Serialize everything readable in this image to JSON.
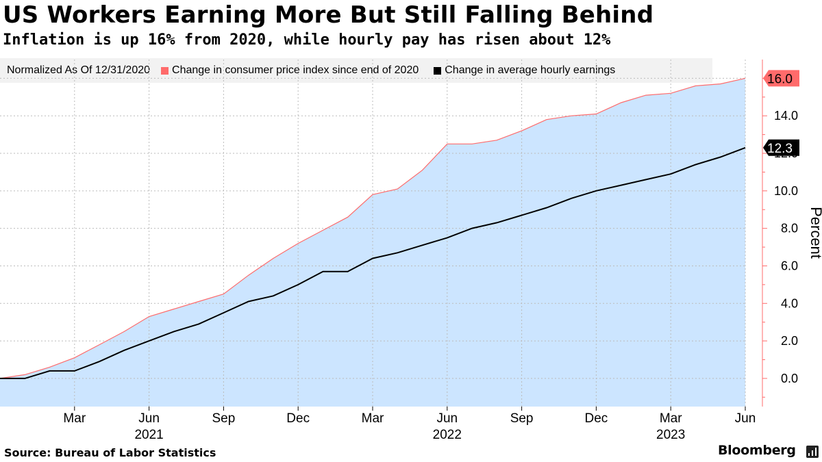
{
  "header": {
    "title": "US Workers Earning More But Still Falling Behind",
    "subtitle": "Inflation is up 16% from 2020, while hourly pay has risen about 12%"
  },
  "legend": {
    "note": "Normalized As Of 12/31/2020",
    "items": [
      {
        "label": "Change in consumer price index since end of 2020",
        "color": "#ff6b6b"
      },
      {
        "label": "Change in average hourly earnings",
        "color": "#000000"
      }
    ]
  },
  "footer": {
    "source": "Source: Bureau of Labor Statistics",
    "brand": "Bloomberg",
    "brand_icon": "bar-chart-icon"
  },
  "colors": {
    "cpi_line": "#ff6b6b",
    "cpi_fill": "#cce5ff",
    "earnings_line": "#000000",
    "axis": "#ff6b6b",
    "grid": "#bbbbbb"
  },
  "chart_data": {
    "type": "area",
    "x": [
      "2020-12",
      "2021-01",
      "2021-02",
      "2021-03",
      "2021-04",
      "2021-05",
      "2021-06",
      "2021-07",
      "2021-08",
      "2021-09",
      "2021-10",
      "2021-11",
      "2021-12",
      "2022-01",
      "2022-02",
      "2022-03",
      "2022-04",
      "2022-05",
      "2022-06",
      "2022-07",
      "2022-08",
      "2022-09",
      "2022-10",
      "2022-11",
      "2022-12",
      "2023-01",
      "2023-02",
      "2023-03",
      "2023-04",
      "2023-05",
      "2023-06"
    ],
    "series": [
      {
        "name": "Change in consumer price index since end of 2020",
        "style": "area",
        "values": [
          0.0,
          0.2,
          0.6,
          1.1,
          1.8,
          2.5,
          3.3,
          3.7,
          4.1,
          4.5,
          5.5,
          6.4,
          7.2,
          7.9,
          8.6,
          9.8,
          10.1,
          11.1,
          12.5,
          12.5,
          12.7,
          13.2,
          13.8,
          14.0,
          14.1,
          14.7,
          15.1,
          15.2,
          15.6,
          15.7,
          16.0
        ]
      },
      {
        "name": "Change in average hourly earnings",
        "style": "line",
        "values": [
          0.0,
          0.0,
          0.4,
          0.4,
          0.9,
          1.5,
          2.0,
          2.5,
          2.9,
          3.5,
          4.1,
          4.4,
          5.0,
          5.7,
          5.7,
          6.4,
          6.7,
          7.1,
          7.5,
          8.0,
          8.3,
          8.7,
          9.1,
          9.6,
          10.0,
          10.3,
          10.6,
          10.9,
          11.4,
          11.8,
          12.3
        ]
      }
    ],
    "ylabel": "Percent",
    "ylim": [
      -1.5,
      17.0
    ],
    "yticks": [
      0,
      2,
      4,
      6,
      8,
      10,
      12,
      14,
      16
    ],
    "ytick_labels": [
      "0.0",
      "2.0",
      "4.0",
      "6.0",
      "8.0",
      "10.0",
      "12.0",
      "14.0",
      "16.0"
    ],
    "xticks": [
      {
        "at": "2021-03",
        "label": "Mar"
      },
      {
        "at": "2021-06",
        "label": "Jun"
      },
      {
        "at": "2021-09",
        "label": "Sep"
      },
      {
        "at": "2021-12",
        "label": "Dec"
      },
      {
        "at": "2022-03",
        "label": "Mar"
      },
      {
        "at": "2022-06",
        "label": "Jun"
      },
      {
        "at": "2022-09",
        "label": "Sep"
      },
      {
        "at": "2022-12",
        "label": "Dec"
      },
      {
        "at": "2023-03",
        "label": "Mar"
      },
      {
        "at": "2023-06",
        "label": "Jun"
      }
    ],
    "year_labels": [
      {
        "at": "2021-06",
        "label": "2021"
      },
      {
        "at": "2022-06",
        "label": "2022"
      },
      {
        "at": "2023-03",
        "label": "2023"
      }
    ],
    "end_labels": [
      {
        "series": 0,
        "label": "16.0"
      },
      {
        "series": 1,
        "label": "12.3"
      }
    ],
    "grid": true,
    "legend_position": "top"
  }
}
